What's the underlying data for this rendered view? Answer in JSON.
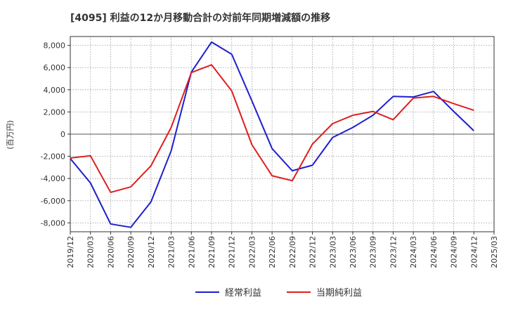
{
  "chart_data": {
    "type": "line",
    "title": "[4095]  利益の12か月移動合計の対前年同期増減額の推移",
    "ylabel": "(百万円)",
    "xlabel": "",
    "ylim": [
      -8800,
      8800
    ],
    "yticks": [
      8000,
      6000,
      4000,
      2000,
      0,
      -2000,
      -4000,
      -6000,
      -8000
    ],
    "ytick_labels": [
      "8,000",
      "6,000",
      "4,000",
      "2,000",
      "0",
      "-2,000",
      "-4,000",
      "-6,000",
      "-8,000"
    ],
    "categories": [
      "2019/12",
      "2020/03",
      "2020/06",
      "2020/09",
      "2020/12",
      "2021/03",
      "2021/06",
      "2021/09",
      "2021/12",
      "2022/03",
      "2022/06",
      "2022/09",
      "2022/12",
      "2023/03",
      "2023/06",
      "2023/09",
      "2023/12",
      "2024/03",
      "2024/06",
      "2024/09",
      "2024/12",
      "2025/03"
    ],
    "grid": true,
    "legend_position": "bottom",
    "series": [
      {
        "name": "経常利益",
        "color": "#1f1fcc",
        "values": [
          -2200,
          -4400,
          -8100,
          -8400,
          -6100,
          -1500,
          5600,
          8300,
          7200,
          3000,
          -1300,
          -3300,
          -2800,
          -300,
          600,
          1700,
          3400,
          3350,
          3850,
          2050,
          300,
          null
        ]
      },
      {
        "name": "当期純利益",
        "color": "#dd1f1f",
        "values": [
          -2150,
          -1950,
          -5250,
          -4750,
          -2850,
          600,
          5550,
          6250,
          3900,
          -950,
          -3750,
          -4200,
          -900,
          950,
          1700,
          2050,
          1300,
          3250,
          3400,
          2750,
          2150,
          null
        ]
      }
    ]
  }
}
